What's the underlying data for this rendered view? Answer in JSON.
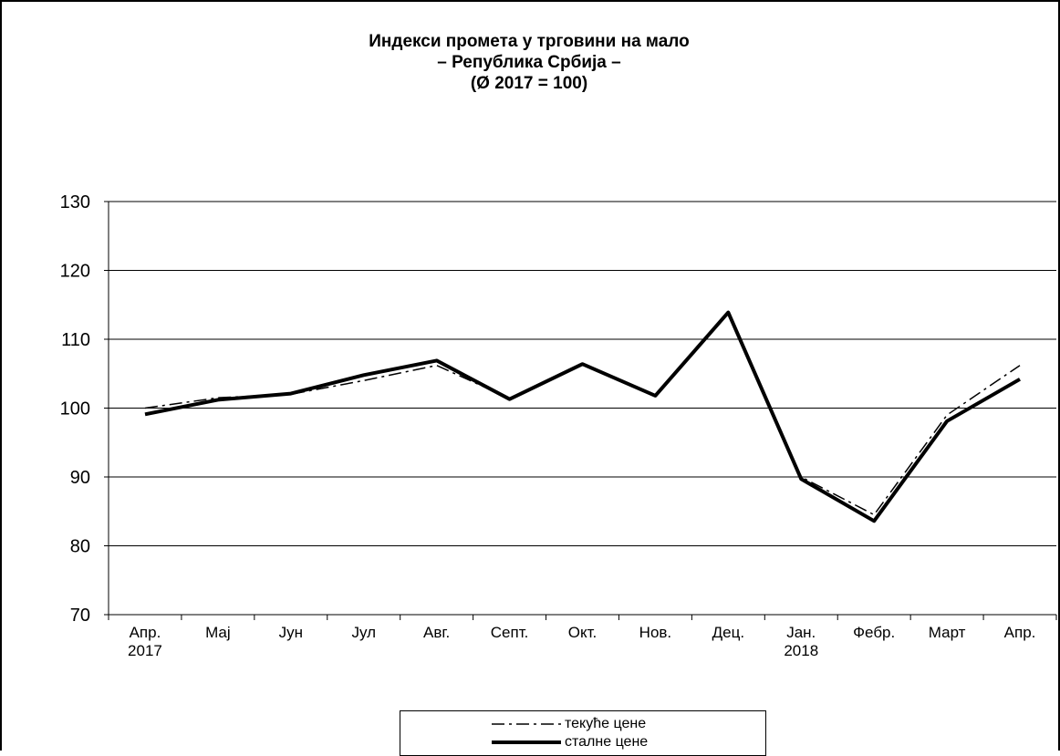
{
  "title_lines": [
    "Индекси промета у трговини на мало",
    "– Република Србија –",
    "(Ø 2017 = 100)"
  ],
  "chart_data": {
    "type": "line",
    "title": "Индекси промета у трговини на мало – Република Србија – (Ø 2017 = 100)",
    "categories": [
      "Апр.\n2017",
      "Мај",
      "Јун",
      "Јул",
      "Авг.",
      "Септ.",
      "Окт.",
      "Нов.",
      "Дец.",
      "Јан.\n2018",
      "Фебр.",
      "Март",
      "Апр."
    ],
    "yticks": [
      70,
      80,
      90,
      100,
      110,
      120,
      130
    ],
    "ylim": [
      70,
      130
    ],
    "grid": true,
    "legend_position": "bottom",
    "series": [
      {
        "name": "текуће цене",
        "style": "dash-dot",
        "color": "#000000",
        "values": [
          100.0,
          101.5,
          102.0,
          104.0,
          106.2,
          101.4,
          106.4,
          101.8,
          113.9,
          90.0,
          84.5,
          99.0,
          106.2
        ]
      },
      {
        "name": "сталне цене",
        "style": "solid-thick",
        "color": "#000000",
        "values": [
          99.1,
          101.2,
          102.1,
          104.8,
          106.9,
          101.3,
          106.4,
          101.8,
          113.9,
          89.7,
          83.6,
          98.1,
          104.2
        ]
      }
    ]
  }
}
